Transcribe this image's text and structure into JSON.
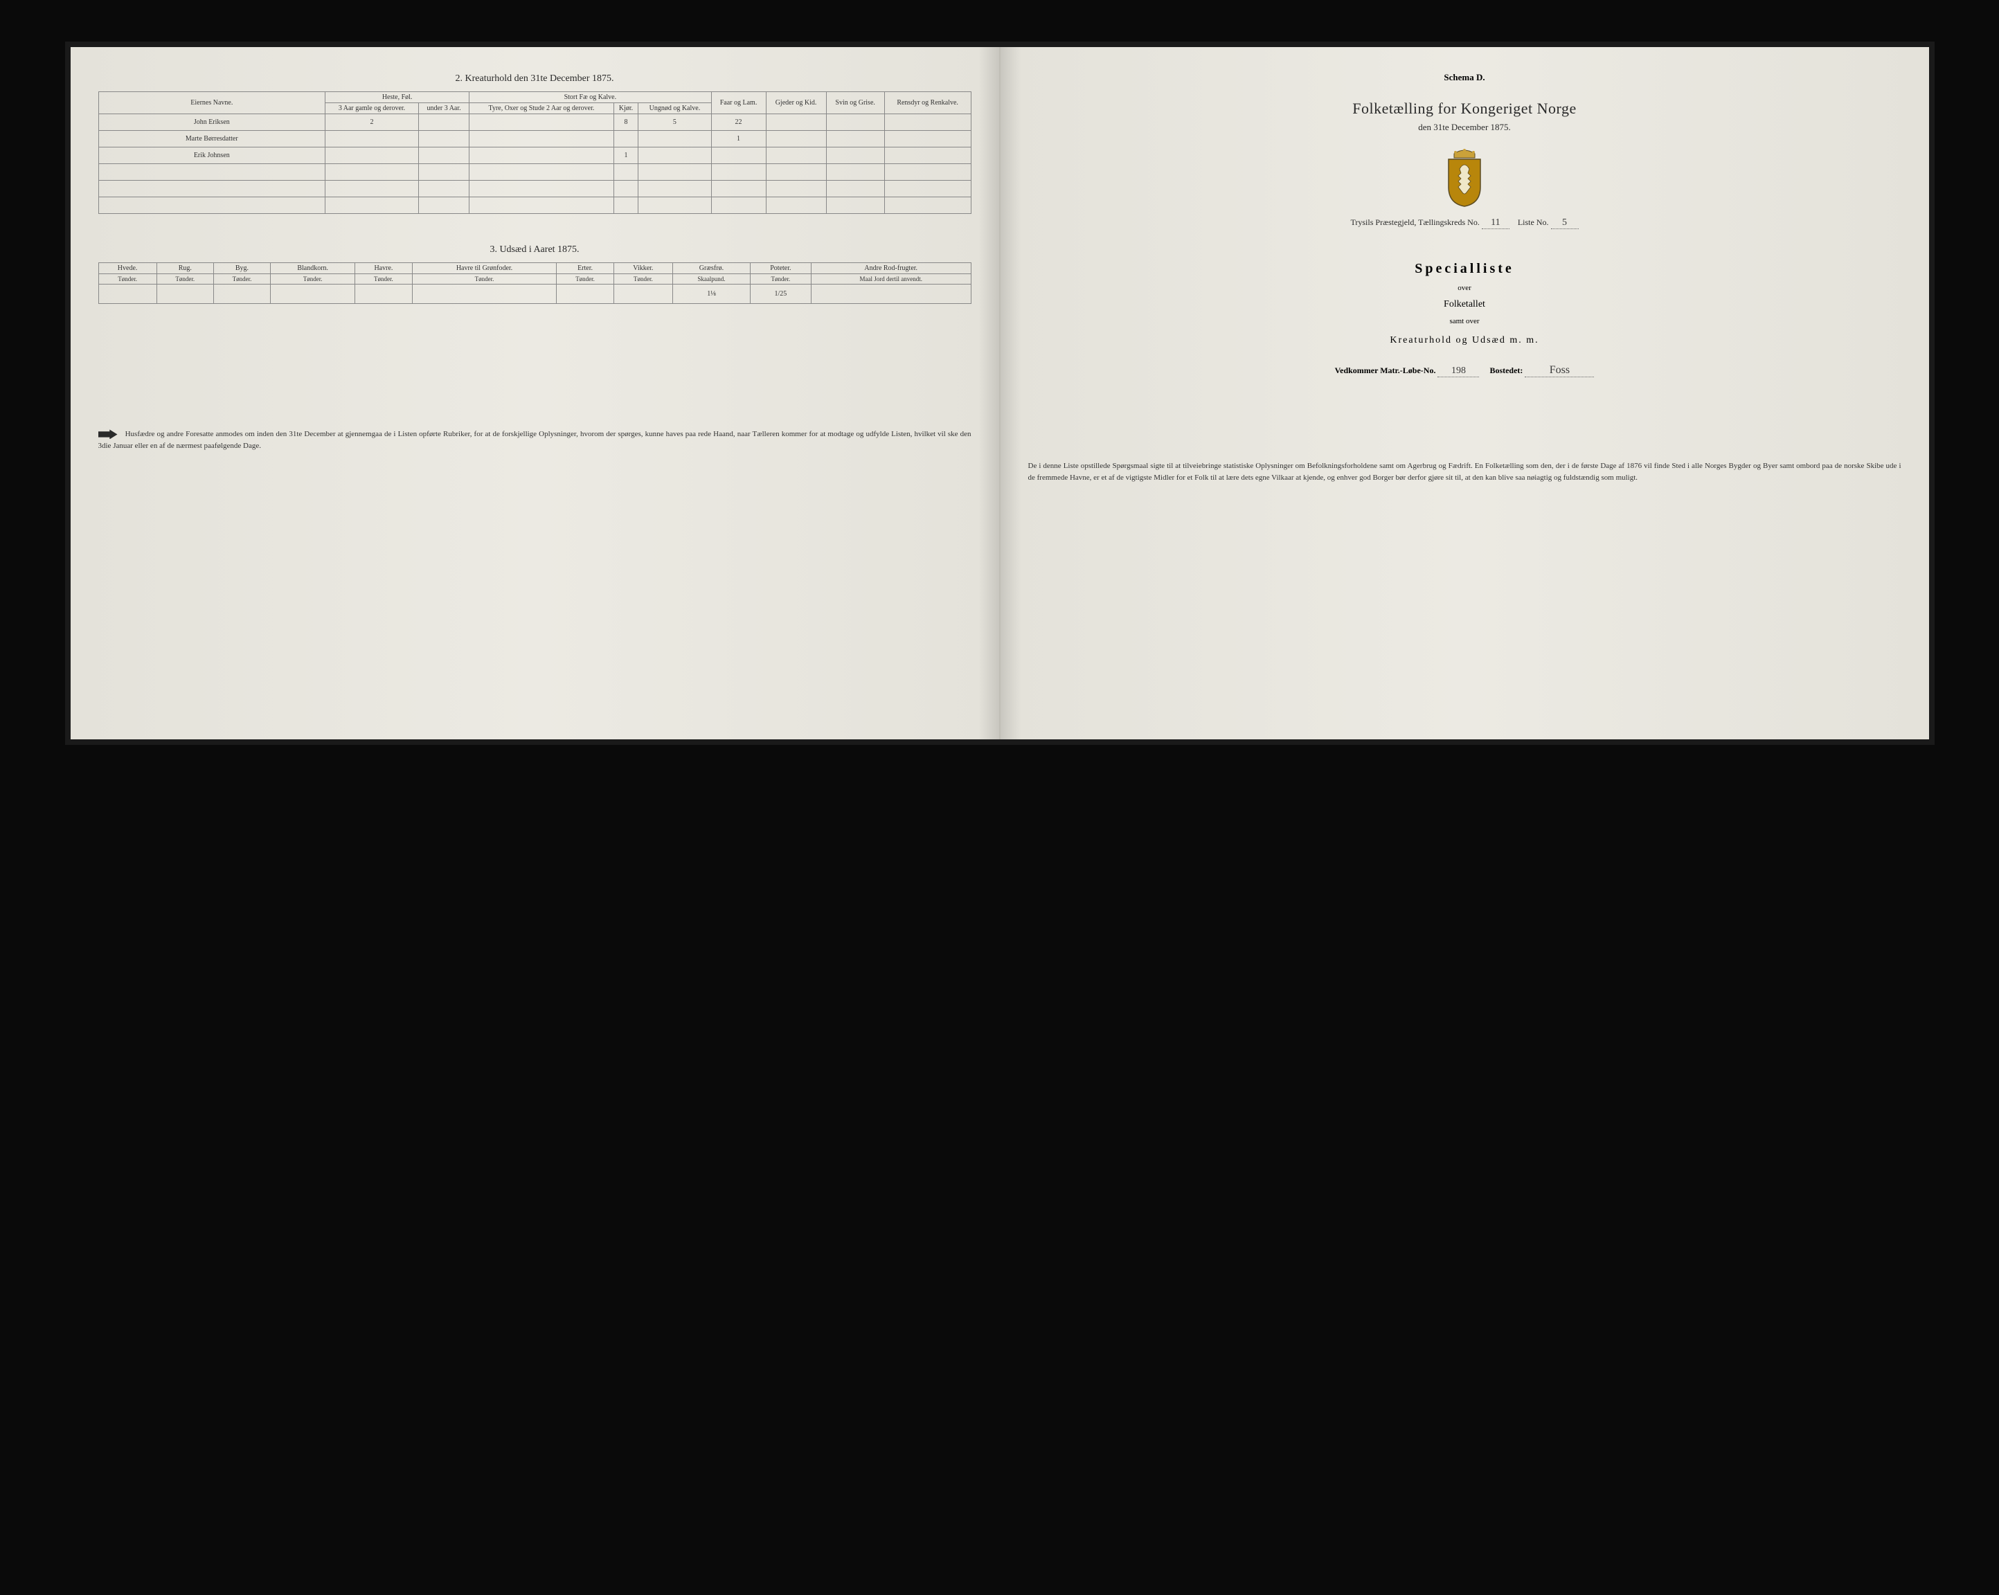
{
  "left": {
    "section2_title": "2. Kreaturhold den 31te December 1875.",
    "t2": {
      "col_owner": "Eiernes Navne.",
      "grp_horse": "Heste, Føl.",
      "grp_cattle": "Stort Fæ og Kalve.",
      "col_h1": "3 Aar gamle og derover.",
      "col_h2": "under 3 Aar.",
      "col_c1": "Tyre, Oxer og Stude 2 Aar og derover.",
      "col_c2": "Kjør.",
      "col_c3": "Ungnød og Kalve.",
      "col_sheep": "Faar og Lam.",
      "col_goat": "Gjeder og Kid.",
      "col_pig": "Svin og Grise.",
      "col_rein": "Rensdyr og Renkalve.",
      "rows": [
        {
          "name": "John Eriksen",
          "h1": "2",
          "h2": "",
          "c1": "",
          "c2": "8",
          "c3": "5",
          "sheep": "22",
          "goat": "",
          "pig": "",
          "rein": ""
        },
        {
          "name": "Marte Børresdatter",
          "h1": "",
          "h2": "",
          "c1": "",
          "c2": "",
          "c3": "",
          "sheep": "1",
          "goat": "",
          "pig": "",
          "rein": ""
        },
        {
          "name": "Erik Johnsen",
          "h1": "",
          "h2": "",
          "c1": "",
          "c2": "1",
          "c3": "",
          "sheep": "",
          "goat": "",
          "pig": "",
          "rein": ""
        }
      ]
    },
    "section3_title": "3. Udsæd i Aaret 1875.",
    "t3": {
      "cols": [
        "Hvede.",
        "Rug.",
        "Byg.",
        "Blandkorn.",
        "Havre.",
        "Havre til Grønfoder.",
        "Erter.",
        "Vikker.",
        "Græsfrø.",
        "Poteter.",
        "Andre Rod-frugter."
      ],
      "units": [
        "Tønder.",
        "Tønder.",
        "Tønder.",
        "Tønder.",
        "Tønder.",
        "Tønder.",
        "Tønder.",
        "Tønder.",
        "Skaalpund.",
        "Tønder.",
        "Maal Jord dertil anvendt."
      ],
      "row": [
        "",
        "",
        "",
        "",
        "",
        "",
        "",
        "",
        "1⅛",
        "1/25",
        ""
      ]
    },
    "footnote": "Husfædre og andre Foresatte anmodes om inden den 31te December at gjennemgaa de i Listen opførte Rubriker, for at de forskjellige Oplysninger, hvorom der spørges, kunne haves paa rede Haand, naar Tælleren kommer for at modtage og udfylde Listen, hvilket vil ske den 3die Januar eller en af de nærmest paafølgende Dage."
  },
  "right": {
    "schema": "Schema D.",
    "title": "Folketælling for Kongeriget Norge",
    "subtitle": "den 31te December 1875.",
    "crest_colors": {
      "shield": "#b8860b",
      "outline": "#5a4a20",
      "crown": "#caa23a"
    },
    "parish_prefix": "Trysils Præstegjeld, Tællingskreds No.",
    "parish_no": "11",
    "liste_label": "Liste No.",
    "liste_no": "5",
    "special": "Specialliste",
    "over1": "over",
    "folketallet": "Folketallet",
    "samt": "samt over",
    "kreatur": "Kreaturhold og Udsæd m. m.",
    "matr_label": "Vedkommer Matr.-Løbe-No.",
    "matr_no": "198",
    "bosted_label": "Bostedet:",
    "bosted": "Foss",
    "footnote": "De i denne Liste opstillede Spørgsmaal sigte til at tilveiebringe statistiske Oplysninger om Befolkningsforholdene samt om Agerbrug og Fædrift. En Folketælling som den, der i de første Dage af 1876 vil finde Sted i alle Norges Bygder og Byer samt ombord paa de norske Skibe ude i de fremmede Havne, er et af de vigtigste Midler for et Folk til at lære dets egne Vilkaar at kjende, og enhver god Borger bør derfor gjøre sit til, at den kan blive saa nøiagtig og fuldstændig som muligt."
  }
}
